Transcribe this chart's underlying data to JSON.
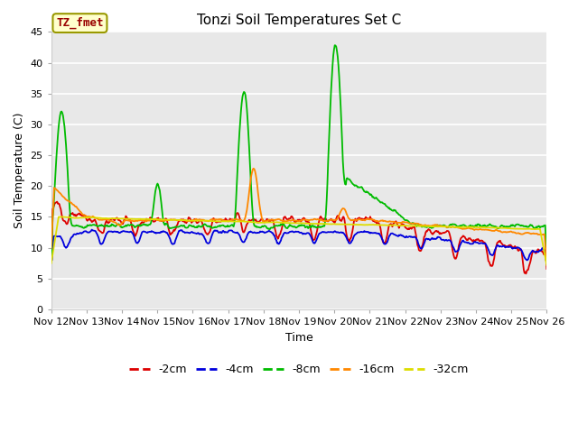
{
  "title": "Tonzi Soil Temperatures Set C",
  "xlabel": "Time",
  "ylabel": "Soil Temperature (C)",
  "ylim": [
    0,
    45
  ],
  "yticks": [
    0,
    5,
    10,
    15,
    20,
    25,
    30,
    35,
    40,
    45
  ],
  "xtick_labels": [
    "Nov 12",
    "Nov 13",
    "Nov 14",
    "Nov 15",
    "Nov 16",
    "Nov 17",
    "Nov 18",
    "Nov 19",
    "Nov 20",
    "Nov 21",
    "Nov 22",
    "Nov 23",
    "Nov 24",
    "Nov 25",
    "Nov 26"
  ],
  "series_colors": {
    "-2cm": "#dd0000",
    "-4cm": "#0000dd",
    "-8cm": "#00bb00",
    "-16cm": "#ff8800",
    "-32cm": "#dddd00"
  },
  "annotation_text": "TZ_fmet",
  "annotation_color": "#990000",
  "annotation_bg": "#ffffcc",
  "annotation_edge": "#999900",
  "fig_bg": "#ffffff",
  "plot_bg": "#e8e8e8",
  "grid_color": "#ffffff",
  "title_fontsize": 11,
  "axis_label_fontsize": 9,
  "tick_fontsize": 8
}
